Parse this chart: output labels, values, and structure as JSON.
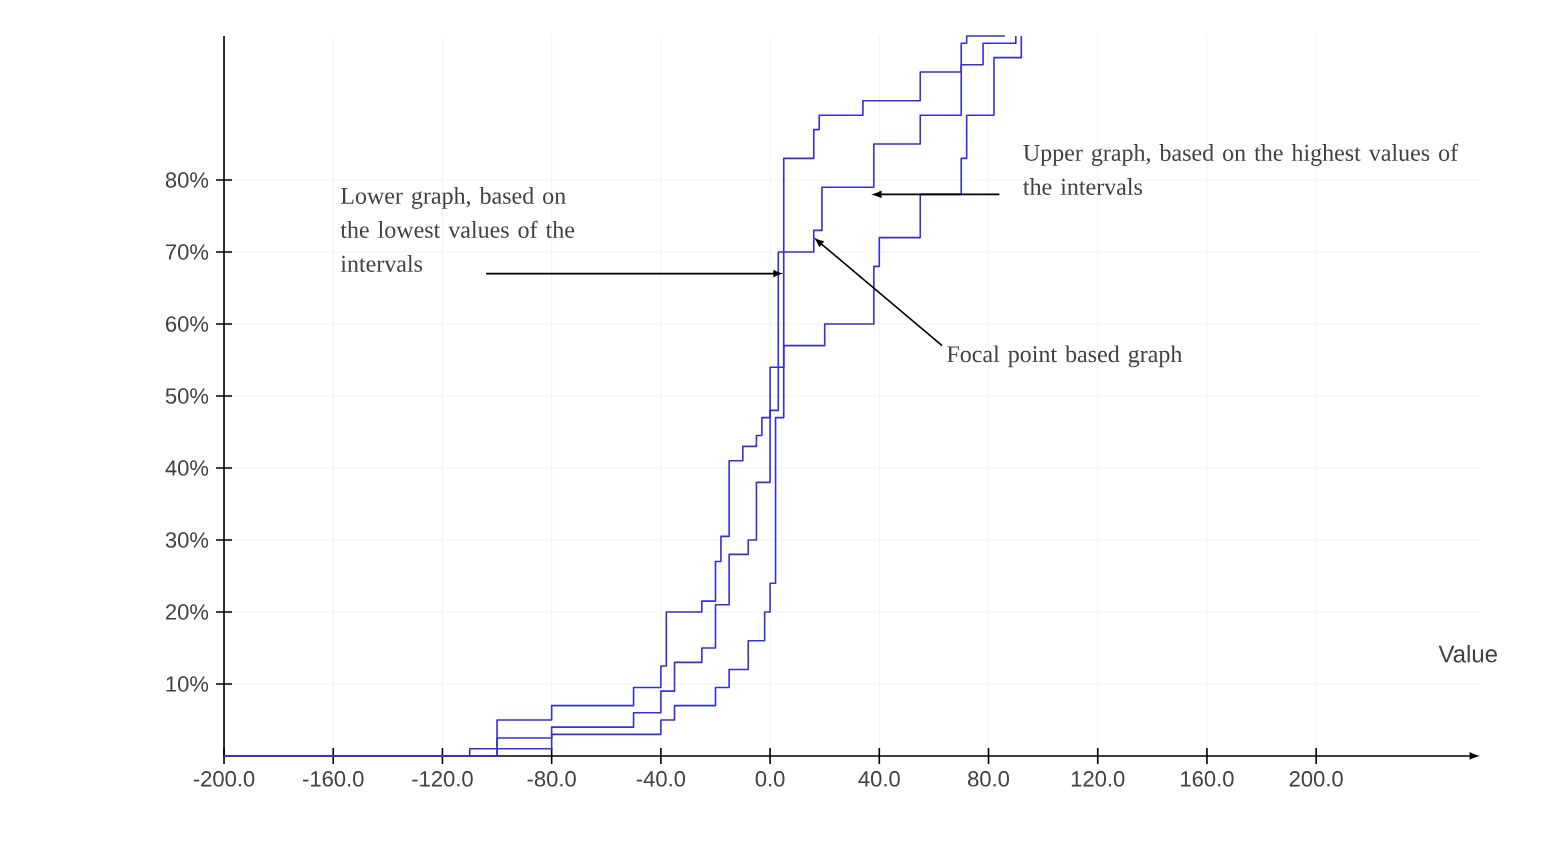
{
  "chart_data": {
    "type": "step",
    "xlabel": "Value",
    "xlim": [
      -200,
      260
    ],
    "ylim": [
      0,
      100
    ],
    "xticks": [
      {
        "value": -200,
        "label": "-200.0"
      },
      {
        "value": -160,
        "label": "-160.0"
      },
      {
        "value": -120,
        "label": "-120.0"
      },
      {
        "value": -80,
        "label": "-80.0"
      },
      {
        "value": -40,
        "label": "-40.0"
      },
      {
        "value": 0,
        "label": "0.0"
      },
      {
        "value": 40,
        "label": "40.0"
      },
      {
        "value": 80,
        "label": "80.0"
      },
      {
        "value": 120,
        "label": "120.0"
      },
      {
        "value": 160,
        "label": "160.0"
      },
      {
        "value": 200,
        "label": "200.0"
      }
    ],
    "yticks": [
      {
        "value": 10,
        "label": "10%"
      },
      {
        "value": 20,
        "label": "20%"
      },
      {
        "value": 30,
        "label": "30%"
      },
      {
        "value": 40,
        "label": "40%"
      },
      {
        "value": 50,
        "label": "50%"
      },
      {
        "value": 60,
        "label": "60%"
      },
      {
        "value": 70,
        "label": "70%"
      },
      {
        "value": 80,
        "label": "80%"
      }
    ],
    "grid": true,
    "marker": "none",
    "line_style": "solid",
    "annotations": [
      {
        "text": "Lower graph, based on the lowest values of the intervals",
        "x": 5,
        "y": 67
      },
      {
        "text": "Upper graph, based on the highest values of the intervals",
        "x": 37,
        "y": 78
      },
      {
        "text": "Focal point based graph",
        "x": 16,
        "y": 72
      }
    ],
    "series": [
      {
        "color": "#3030e0",
        "x": [
          -200,
          -100,
          -80,
          -50,
          -40,
          -38,
          -25,
          -20,
          -18,
          -15,
          -10,
          -5,
          -3,
          0,
          5,
          16,
          18,
          34,
          55,
          70,
          72,
          86
        ],
        "values": [
          0,
          5,
          7,
          9.5,
          12.5,
          20,
          21.5,
          27,
          30.5,
          41,
          43,
          44.5,
          47,
          54,
          83,
          87,
          89,
          91,
          95,
          99,
          100,
          100
        ]
      },
      {
        "color": "#3030e0",
        "x": [
          -200,
          -110,
          -100,
          -80,
          -50,
          -40,
          -35,
          -25,
          -20,
          -15,
          -8,
          -5,
          0,
          3,
          16,
          19,
          38,
          55,
          70,
          78,
          90
        ],
        "values": [
          0,
          1,
          2.5,
          4,
          6,
          9,
          13,
          15,
          21,
          28,
          30,
          38,
          48,
          70,
          73,
          79,
          85,
          89,
          96,
          99,
          100
        ]
      },
      {
        "color": "#3030e0",
        "x": [
          -200,
          -100,
          -80,
          -40,
          -35,
          -20,
          -15,
          -8,
          -2,
          0,
          2,
          5,
          20,
          38,
          40,
          55,
          70,
          72,
          82,
          92
        ],
        "values": [
          0,
          1,
          3,
          5,
          7,
          9.5,
          12,
          16,
          20,
          24,
          47,
          57,
          60,
          68,
          72,
          78,
          83,
          89,
          97,
          100
        ]
      }
    ]
  }
}
